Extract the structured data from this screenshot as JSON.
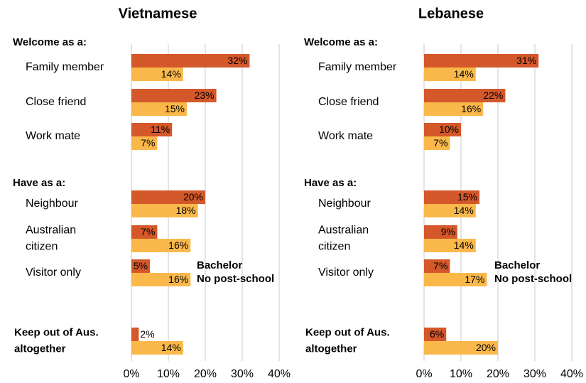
{
  "chart_data": [
    {
      "type": "bar",
      "title": "Vietnamese",
      "group_labels": [
        "Welcome as a:",
        "Have as a:"
      ],
      "categories": [
        [
          "Family member"
        ],
        [
          "Close friend"
        ],
        [
          "Work mate"
        ],
        [
          "Neighbour"
        ],
        [
          "Australian",
          "citizen"
        ],
        [
          "Visitor only"
        ],
        [
          "Keep out of Aus.",
          "altogether"
        ]
      ],
      "series": [
        {
          "name": "Bachelor",
          "color": "#d4582a",
          "values": [
            32,
            23,
            11,
            20,
            7,
            5,
            2
          ],
          "value_labels": [
            "32%",
            "23%",
            "11%",
            "20%",
            "7%",
            "5%",
            "2%"
          ]
        },
        {
          "name": "No post-school",
          "color": "#fbb84a",
          "values": [
            14,
            15,
            7,
            18,
            16,
            16,
            14
          ],
          "value_labels": [
            "14%",
            "15%",
            "7%",
            "18%",
            "16%",
            "16%",
            "14%"
          ]
        }
      ],
      "xlim": [
        0,
        40
      ],
      "xticks": [
        {
          "value": 0,
          "label": "0%"
        },
        {
          "value": 10,
          "label": "10%"
        },
        {
          "value": 20,
          "label": "20%"
        },
        {
          "value": 30,
          "label": "30%"
        },
        {
          "value": 40,
          "label": "40%"
        }
      ],
      "grid": true
    },
    {
      "type": "bar",
      "title": "Lebanese",
      "group_labels": [
        "Welcome as a:",
        "Have as a:"
      ],
      "categories": [
        [
          "Family member"
        ],
        [
          "Close friend"
        ],
        [
          "Work mate"
        ],
        [
          "Neighbour"
        ],
        [
          "Australian",
          "citizen"
        ],
        [
          "Visitor only"
        ],
        [
          "Keep out of Aus.",
          "altogether"
        ]
      ],
      "series": [
        {
          "name": "Bachelor",
          "color": "#d4582a",
          "values": [
            31,
            22,
            10,
            15,
            9,
            7,
            6
          ],
          "value_labels": [
            "31%",
            "22%",
            "10%",
            "15%",
            "9%",
            "7%",
            "6%"
          ]
        },
        {
          "name": "No post-school",
          "color": "#fbb84a",
          "values": [
            14,
            16,
            7,
            14,
            14,
            17,
            20
          ],
          "value_labels": [
            "14%",
            "16%",
            "7%",
            "14%",
            "14%",
            "17%",
            "20%"
          ]
        }
      ],
      "xlim": [
        0,
        40
      ],
      "xticks": [
        {
          "value": 0,
          "label": "0%"
        },
        {
          "value": 10,
          "label": "10%"
        },
        {
          "value": 20,
          "label": "20%"
        },
        {
          "value": 30,
          "label": "30%"
        },
        {
          "value": 40,
          "label": "40%"
        }
      ],
      "grid": true
    }
  ]
}
